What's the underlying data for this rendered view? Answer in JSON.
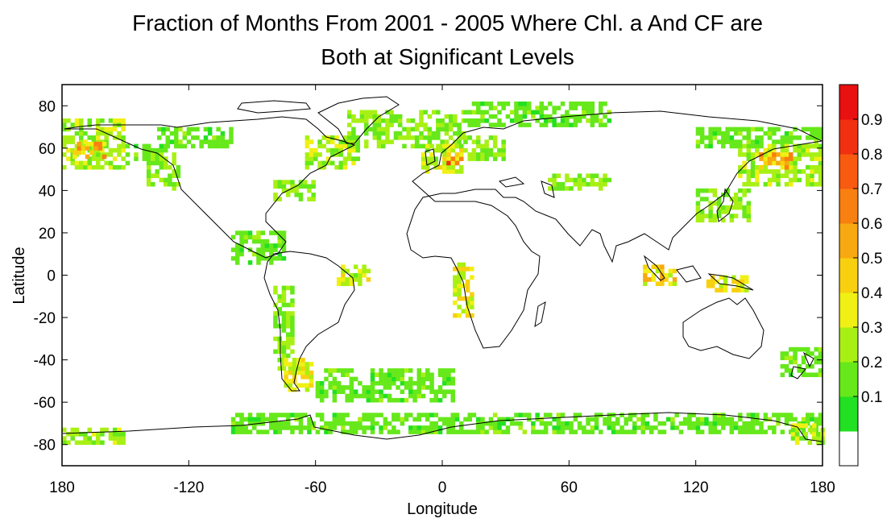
{
  "title": {
    "line1": "Fraction of Months From 2001 - 2005 Where Chl. a And CF are",
    "line2": "Both at Significant Levels"
  },
  "axes": {
    "xlabel": "Longitude",
    "ylabel": "Latitude",
    "x_ticks": [
      "180",
      "-120",
      "-60",
      "0",
      "60",
      "120",
      "180"
    ],
    "y_ticks": [
      "80",
      "60",
      "40",
      "20",
      "0",
      "-20",
      "-40",
      "-60",
      "-80"
    ]
  },
  "colorbar": {
    "labels": [
      "0.1",
      "0.2",
      "0.3",
      "0.4",
      "0.5",
      "0.6",
      "0.7",
      "0.8",
      "0.9"
    ],
    "colors": [
      "#ffffff",
      "#22e022",
      "#66e81a",
      "#a8f014",
      "#f0f014",
      "#f8d010",
      "#f8a810",
      "#f88010",
      "#f85a10",
      "#f03010",
      "#e81010"
    ]
  },
  "chart_data": {
    "type": "heatmap",
    "title": "Fraction of Months From 2001 - 2005 Where Chl. a And CF are Both at Significant Levels",
    "xlabel": "Longitude",
    "ylabel": "Latitude",
    "xlim": [
      -180,
      180
    ],
    "ylim": [
      -90,
      90
    ],
    "value_range": [
      0,
      1
    ],
    "regions": [
      {
        "lon": [
          -180,
          -150
        ],
        "lat": [
          50,
          73
        ],
        "value": 0.25
      },
      {
        "lon": [
          -175,
          -160
        ],
        "lat": [
          55,
          62
        ],
        "value": 0.5
      },
      {
        "lon": [
          -150,
          -130
        ],
        "lat": [
          52,
          62
        ],
        "value": 0.15
      },
      {
        "lon": [
          -140,
          -125
        ],
        "lat": [
          40,
          58
        ],
        "value": 0.2
      },
      {
        "lon": [
          -135,
          -100
        ],
        "lat": [
          60,
          70
        ],
        "value": 0.15
      },
      {
        "lon": [
          -65,
          -40
        ],
        "lat": [
          50,
          66
        ],
        "value": 0.25
      },
      {
        "lon": [
          -80,
          -60
        ],
        "lat": [
          35,
          45
        ],
        "value": 0.2
      },
      {
        "lon": [
          -45,
          10
        ],
        "lat": [
          60,
          78
        ],
        "value": 0.2
      },
      {
        "lon": [
          -10,
          10
        ],
        "lat": [
          48,
          62
        ],
        "value": 0.3
      },
      {
        "lon": [
          2,
          9
        ],
        "lat": [
          52,
          58
        ],
        "value": 0.6
      },
      {
        "lon": [
          10,
          30
        ],
        "lat": [
          54,
          65
        ],
        "value": 0.2
      },
      {
        "lon": [
          10,
          80
        ],
        "lat": [
          70,
          82
        ],
        "value": 0.15
      },
      {
        "lon": [
          50,
          80
        ],
        "lat": [
          40,
          47
        ],
        "value": 0.2
      },
      {
        "lon": [
          120,
          180
        ],
        "lat": [
          60,
          70
        ],
        "value": 0.15
      },
      {
        "lon": [
          140,
          180
        ],
        "lat": [
          42,
          62
        ],
        "value": 0.25
      },
      {
        "lon": [
          150,
          165
        ],
        "lat": [
          50,
          58
        ],
        "value": 0.5
      },
      {
        "lon": [
          120,
          145
        ],
        "lat": [
          25,
          40
        ],
        "value": 0.2
      },
      {
        "lon": [
          -100,
          -75
        ],
        "lat": [
          5,
          20
        ],
        "value": 0.15
      },
      {
        "lon": [
          -50,
          -35
        ],
        "lat": [
          -5,
          5
        ],
        "value": 0.3
      },
      {
        "lon": [
          5,
          15
        ],
        "lat": [
          -20,
          5
        ],
        "value": 0.35
      },
      {
        "lon": [
          95,
          110
        ],
        "lat": [
          -5,
          5
        ],
        "value": 0.4
      },
      {
        "lon": [
          125,
          145
        ],
        "lat": [
          -8,
          0
        ],
        "value": 0.35
      },
      {
        "lon": [
          -80,
          -70
        ],
        "lat": [
          -45,
          -5
        ],
        "value": 0.2
      },
      {
        "lon": [
          -75,
          -62
        ],
        "lat": [
          -55,
          -40
        ],
        "value": 0.35
      },
      {
        "lon": [
          -60,
          5
        ],
        "lat": [
          -60,
          -45
        ],
        "value": 0.15
      },
      {
        "lon": [
          160,
          180
        ],
        "lat": [
          -48,
          -35
        ],
        "value": 0.15
      },
      {
        "lon": [
          -180,
          -150
        ],
        "lat": [
          -80,
          -73
        ],
        "value": 0.25
      },
      {
        "lon": [
          -100,
          180
        ],
        "lat": [
          -75,
          -65
        ],
        "value": 0.15
      },
      {
        "lon": [
          165,
          180
        ],
        "lat": [
          -80,
          -70
        ],
        "value": 0.25
      }
    ]
  }
}
